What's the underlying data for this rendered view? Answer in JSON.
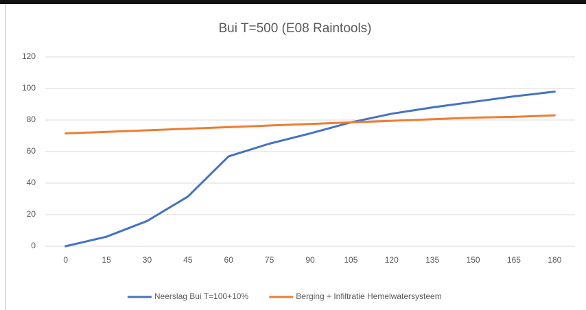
{
  "chart_data": {
    "type": "line",
    "title": "Bui T=500 (E08 Raintools)",
    "categories": [
      "0",
      "15",
      "30",
      "45",
      "60",
      "75",
      "90",
      "105",
      "120",
      "135",
      "150",
      "165",
      "180"
    ],
    "series": [
      {
        "name": "Neerslag Bui T=100+10%",
        "color": "#4472c4",
        "values": [
          0,
          6,
          16,
          31.5,
          57,
          65,
          71.5,
          78.5,
          84,
          88,
          91.5,
          95,
          98
        ]
      },
      {
        "name": "Berging + Infiltratie Hemelwatersysteem",
        "color": "#ed7d31",
        "values": [
          71.5,
          72.5,
          73.5,
          74.5,
          75.5,
          76.5,
          77.5,
          78.5,
          79.5,
          80.5,
          81.5,
          82,
          83
        ]
      }
    ],
    "ylim": [
      0,
      120
    ],
    "yticks": [
      0,
      20,
      40,
      60,
      80,
      100,
      120
    ],
    "grid": true,
    "legend": "bottom"
  }
}
